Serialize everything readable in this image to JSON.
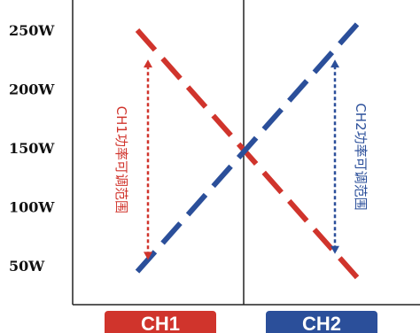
{
  "chart_data": {
    "type": "line",
    "yticks": [
      "250W",
      "200W",
      "150W",
      "100W",
      "50W"
    ],
    "ytick_values": [
      250,
      200,
      150,
      100,
      50
    ],
    "ylim": [
      30,
      260
    ],
    "x": [
      0,
      1
    ],
    "categories": [
      "CH1",
      "CH2"
    ],
    "series": [
      {
        "color": "#d0342c",
        "values": [
          [
            0,
            250
          ],
          [
            1,
            40
          ]
        ]
      },
      {
        "color": "#2b4f9a",
        "values": [
          [
            0,
            45
          ],
          [
            1,
            255
          ]
        ]
      }
    ],
    "crossing": {
      "x": 0.5,
      "y": 155
    },
    "range_annotations": [
      {
        "channel": "CH1",
        "label": "CH1功率可调范围",
        "color": "#d0342c",
        "range": [
          55,
          225
        ]
      },
      {
        "channel": "CH2",
        "label": "CH2功率可调范围",
        "color": "#2b4f9a",
        "range": [
          60,
          225
        ]
      }
    ],
    "grid": false,
    "legend": "none",
    "channel_colors": {
      "CH1": "#d0342c",
      "CH2": "#2b4f9a"
    }
  }
}
